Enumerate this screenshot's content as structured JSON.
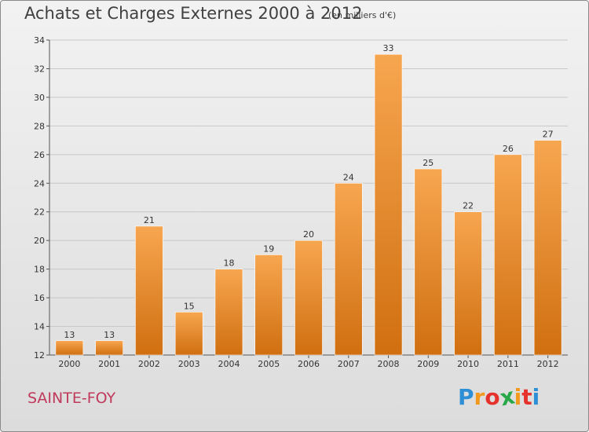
{
  "title": "Achats et Charges Externes 2000 à 2012",
  "subtitle": "(en milliers d'€)",
  "location": "SAINTE-FOY",
  "brand": {
    "letters": [
      "P",
      "r",
      "o",
      "x",
      "i",
      "t",
      "i"
    ],
    "colors": [
      "#2e8fd6",
      "#f39a1e",
      "#e5322c",
      "#29a84a",
      "#f39a1e",
      "#e5322c",
      "#2e8fd6"
    ]
  },
  "colors": {
    "bar_light": "#f7a650",
    "bar_dark": "#d06f10",
    "grid": "#c8c8c8",
    "axis": "#555555"
  },
  "chart_data": {
    "type": "bar",
    "categories": [
      "2000",
      "2001",
      "2002",
      "2003",
      "2004",
      "2005",
      "2006",
      "2007",
      "2008",
      "2009",
      "2010",
      "2011",
      "2012"
    ],
    "values": [
      13,
      13,
      21,
      15,
      18,
      19,
      20,
      24,
      33,
      25,
      22,
      26,
      27
    ],
    "yticks": [
      12,
      14,
      16,
      18,
      20,
      22,
      24,
      26,
      28,
      30,
      32,
      34
    ],
    "ylim": [
      12,
      34
    ],
    "grid": "horizontal",
    "title": "Achats et Charges Externes 2000 à 2012",
    "xlabel": "",
    "ylabel": ""
  }
}
